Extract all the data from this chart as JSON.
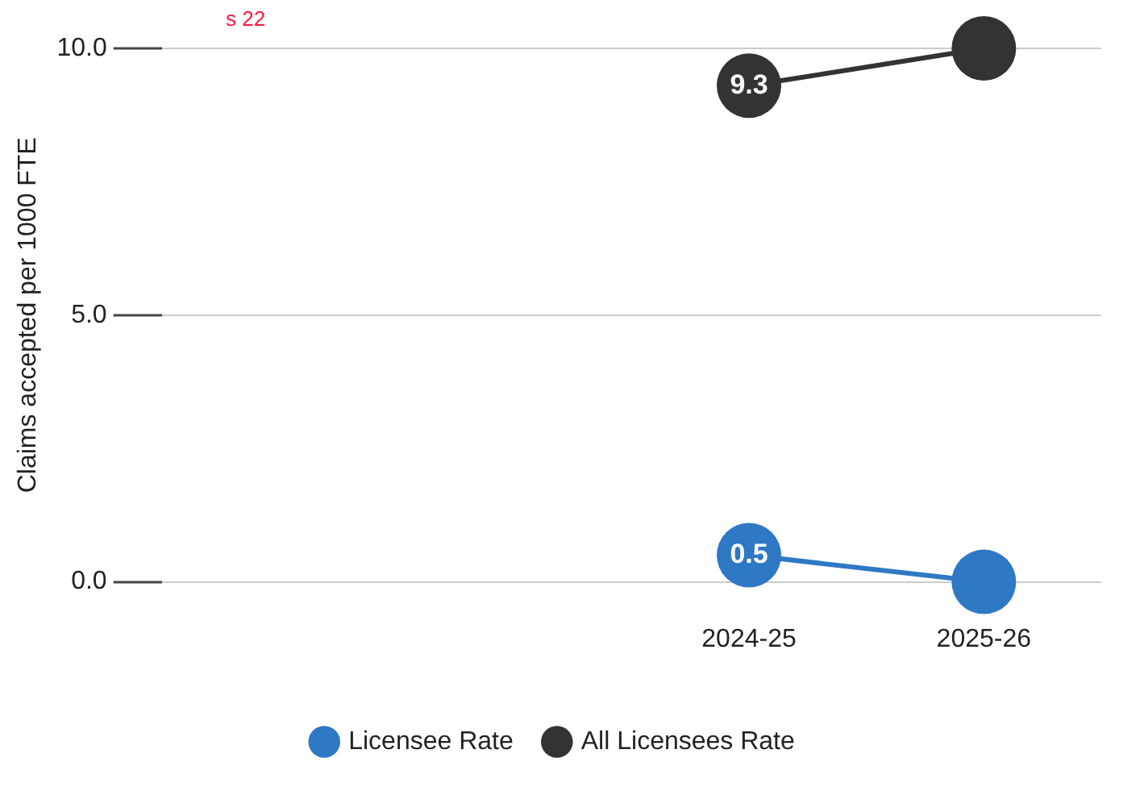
{
  "chart_data": {
    "type": "line",
    "ylabel": "Claims accepted per 1000 FTE",
    "categories": [
      null,
      null,
      "2024-25",
      "2025-26"
    ],
    "series": [
      {
        "name": "Licensee Rate",
        "color": "#2f78c4",
        "values": [
          null,
          null,
          0.5,
          0.0
        ],
        "value_labels": [
          null,
          null,
          "0.5",
          null
        ]
      },
      {
        "name": "All Licensees Rate",
        "color": "#333333",
        "values": [
          null,
          null,
          9.3,
          10.0
        ],
        "value_labels": [
          null,
          null,
          "9.3",
          null
        ]
      }
    ],
    "ylim": [
      0,
      10
    ],
    "yticks": [
      {
        "value": 0,
        "label": "0.0"
      },
      {
        "value": 5,
        "label": "5.0"
      },
      {
        "value": 10,
        "label": "10.0"
      }
    ],
    "grid": "y",
    "legend": "bottom",
    "marker": "circle",
    "line_style": "solid",
    "annotations": [
      "s 22"
    ]
  }
}
